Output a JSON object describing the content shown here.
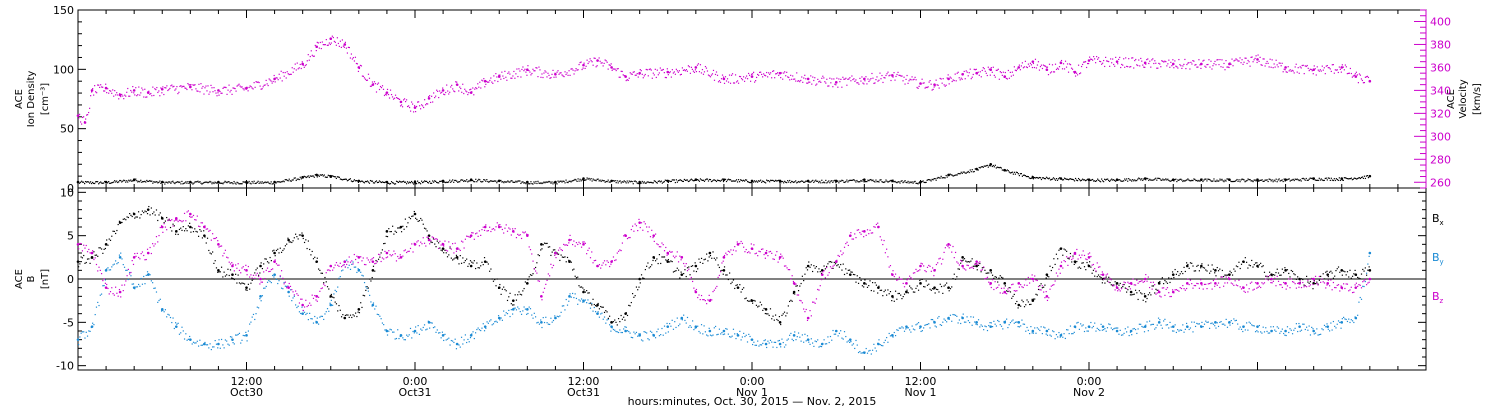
{
  "chart_data": [
    {
      "type": "scatter",
      "panel": "top",
      "left_axis": {
        "label_lines": [
          "ACE",
          "Ion Density",
          "[cm⁻³]"
        ],
        "ylim": [
          0,
          150
        ],
        "ticks": [
          "0",
          "50",
          "100",
          "150"
        ]
      },
      "right_axis": {
        "label_lines": [
          "ACE",
          "Velocity",
          "[km/s]"
        ],
        "ylim": [
          255,
          410
        ],
        "ticks": [
          "260",
          "280",
          "300",
          "320",
          "340",
          "360",
          "380",
          "400"
        ],
        "color": "#cc00cc"
      },
      "series": [
        {
          "axis": "left",
          "color": "#000000",
          "x": [
            0.0,
            2.0,
            4.0,
            6.0,
            8.0,
            10.0,
            12.0,
            14.0,
            16.0,
            17.0,
            18.0,
            20.0,
            22.0,
            24.0,
            26.0,
            28.0,
            30.0,
            32.0,
            34.0,
            36.0,
            38.0,
            40.0,
            42.0,
            44.0,
            46.0,
            48.0,
            50.0,
            52.0,
            54.0,
            56.0,
            58.0,
            60.0,
            62.0,
            64.0,
            65.0,
            66.0,
            68.0,
            70.0,
            72.0,
            74.0,
            76.0,
            78.0,
            80.0,
            82.0,
            84.0,
            86.0,
            88.0,
            90.0,
            92.0
          ],
          "values": [
            5,
            5,
            7,
            5,
            5,
            5,
            5,
            5,
            9,
            11,
            10,
            6,
            5,
            5,
            6,
            7,
            6,
            5,
            5,
            8,
            6,
            5,
            6,
            7,
            7,
            6,
            6,
            6,
            6,
            7,
            6,
            5,
            11,
            16,
            20,
            15,
            9,
            8,
            7,
            7,
            8,
            7,
            7,
            7,
            7,
            7,
            8,
            8,
            10
          ]
        },
        {
          "axis": "right",
          "color": "#cc00cc",
          "x": [
            0.0,
            0.5,
            1.0,
            2.0,
            3.0,
            4.0,
            5.0,
            6.0,
            8.0,
            10.0,
            12.0,
            14.0,
            16.0,
            17.0,
            18.0,
            19.0,
            20.0,
            21.0,
            22.0,
            23.0,
            24.0,
            25.0,
            26.0,
            27.0,
            28.0,
            29.0,
            30.0,
            32.0,
            34.0,
            36.0,
            37.0,
            38.0,
            39.0,
            40.0,
            42.0,
            44.0,
            46.0,
            48.0,
            50.0,
            52.0,
            54.0,
            56.0,
            58.0,
            60.0,
            61.0,
            62.0,
            63.0,
            64.0,
            65.0,
            66.0,
            67.0,
            68.0,
            69.0,
            70.0,
            71.0,
            72.0,
            74.0,
            76.0,
            78.0,
            80.0,
            82.0,
            84.0,
            86.0,
            88.0,
            90.0,
            91.0,
            92.0
          ],
          "values": [
            318,
            312,
            340,
            342,
            336,
            340,
            338,
            341,
            343,
            340,
            342,
            350,
            363,
            378,
            385,
            380,
            360,
            345,
            338,
            330,
            325,
            333,
            340,
            345,
            338,
            348,
            352,
            358,
            354,
            362,
            366,
            360,
            352,
            355,
            356,
            360,
            350,
            352,
            355,
            350,
            347,
            350,
            353,
            346,
            345,
            350,
            354,
            355,
            358,
            352,
            360,
            365,
            358,
            364,
            356,
            366,
            365,
            364,
            363,
            363,
            363,
            367,
            360,
            358,
            360,
            352,
            348
          ]
        }
      ]
    },
    {
      "type": "scatter",
      "panel": "bottom",
      "left_axis": {
        "label_lines": [
          "ACE",
          "B",
          "[nT]"
        ],
        "ylim": [
          -10.5,
          10.5
        ],
        "ticks": [
          "-10",
          "-5",
          "0",
          "5",
          "10"
        ]
      },
      "x_axis": {
        "title": "hours:minutes, Oct. 30, 2015 — Nov.  2, 2015",
        "xlim": [
          0,
          96
        ],
        "ticks": [
          {
            "h": 12,
            "line1": "12:00",
            "line2": "Oct30"
          },
          {
            "h": 24,
            "line1": "0:00",
            "line2": "Oct31"
          },
          {
            "h": 36,
            "line1": "12:00",
            "line2": "Oct31"
          },
          {
            "h": 48,
            "line1": "0:00",
            "line2": "Nov 1"
          },
          {
            "h": 60,
            "line1": "12:00",
            "line2": "Nov 1"
          },
          {
            "h": 72,
            "line1": "0:00",
            "line2": "Nov 2"
          }
        ]
      },
      "legend": [
        {
          "main": "B",
          "sub": "x",
          "color": "#000000"
        },
        {
          "main": "B",
          "sub": "y",
          "color": "#1a8ad4"
        },
        {
          "main": "B",
          "sub": "z",
          "color": "#cc00cc"
        }
      ],
      "series": [
        {
          "name": "Bx",
          "color": "#000000",
          "x": [
            0,
            1,
            2,
            3,
            4,
            5,
            6,
            7,
            8,
            9,
            10,
            11,
            12,
            13,
            14,
            15,
            16,
            17,
            18,
            19,
            20,
            21,
            22,
            23,
            24,
            25,
            26,
            27,
            28,
            29,
            30,
            31,
            32,
            33,
            34,
            35,
            36,
            37,
            38,
            39,
            40,
            41,
            42,
            43,
            44,
            45,
            46,
            47,
            48,
            49,
            50,
            51,
            52,
            53,
            54,
            55,
            56,
            57,
            58,
            59,
            60,
            61,
            62,
            63,
            64,
            65,
            66,
            67,
            68,
            69,
            70,
            71,
            72,
            73,
            74,
            75,
            76,
            77,
            78,
            79,
            80,
            81,
            82,
            83,
            84,
            85,
            86,
            87,
            88,
            89,
            90,
            91,
            92
          ],
          "values": [
            2.0,
            2.5,
            4.0,
            6.5,
            7.5,
            8.0,
            7.0,
            5.5,
            6.0,
            5.0,
            1.0,
            0.5,
            -1.0,
            1.5,
            3.0,
            4.5,
            5.0,
            2.0,
            -2.0,
            -4.5,
            -3.5,
            1.0,
            5.5,
            6.0,
            7.5,
            5.0,
            3.5,
            2.5,
            1.5,
            2.0,
            -1.0,
            -2.5,
            -0.5,
            4.0,
            3.0,
            2.0,
            -1.5,
            -3.0,
            -5.0,
            -4.0,
            0.0,
            2.5,
            2.0,
            0.5,
            1.5,
            3.0,
            1.0,
            -1.0,
            -2.5,
            -3.5,
            -5.0,
            -1.5,
            1.5,
            1.0,
            2.0,
            0.5,
            -0.5,
            -1.0,
            -2.0,
            -1.5,
            -0.5,
            -1.0,
            -1.0,
            2.5,
            1.5,
            1.0,
            -0.5,
            -3.0,
            -2.5,
            0.5,
            3.5,
            2.0,
            1.5,
            0.0,
            -0.5,
            -1.5,
            -2.0,
            -0.5,
            0.5,
            1.5,
            1.5,
            1.0,
            0.5,
            2.0,
            1.5,
            0.5,
            1.0,
            0.0,
            -0.5,
            0.5,
            1.0,
            0.5,
            1.0
          ]
        },
        {
          "name": "By",
          "color": "#1a8ad4",
          "x": [
            0,
            1,
            2,
            3,
            4,
            5,
            6,
            7,
            8,
            9,
            10,
            11,
            12,
            13,
            14,
            15,
            16,
            17,
            18,
            19,
            20,
            21,
            22,
            23,
            24,
            25,
            26,
            27,
            28,
            29,
            30,
            31,
            32,
            33,
            34,
            35,
            36,
            37,
            38,
            39,
            40,
            41,
            42,
            43,
            44,
            45,
            46,
            47,
            48,
            49,
            50,
            51,
            52,
            53,
            54,
            55,
            56,
            57,
            58,
            59,
            60,
            61,
            62,
            63,
            64,
            65,
            66,
            67,
            68,
            69,
            70,
            71,
            72,
            73,
            74,
            75,
            76,
            77,
            78,
            79,
            80,
            81,
            82,
            83,
            84,
            85,
            86,
            87,
            88,
            89,
            90,
            91,
            92
          ],
          "values": [
            -7.0,
            -5.5,
            1.0,
            2.5,
            -1.0,
            0.5,
            -3.5,
            -5.5,
            -7.0,
            -7.5,
            -7.5,
            -7.0,
            -6.5,
            -2.0,
            0.5,
            -1.5,
            -4.0,
            -5.0,
            -3.0,
            2.0,
            1.0,
            -3.0,
            -6.0,
            -6.5,
            -6.0,
            -5.0,
            -6.5,
            -7.5,
            -6.5,
            -5.5,
            -4.5,
            -3.5,
            -3.5,
            -5.0,
            -4.5,
            -2.0,
            -2.5,
            -4.0,
            -5.5,
            -6.0,
            -6.5,
            -6.5,
            -5.5,
            -4.5,
            -5.5,
            -6.0,
            -6.0,
            -6.5,
            -7.0,
            -7.5,
            -7.5,
            -6.5,
            -7.0,
            -7.5,
            -6.0,
            -7.0,
            -8.5,
            -7.5,
            -6.5,
            -5.5,
            -5.5,
            -5.0,
            -4.5,
            -4.5,
            -5.0,
            -5.5,
            -5.0,
            -5.0,
            -6.0,
            -6.0,
            -6.5,
            -5.5,
            -5.5,
            -5.5,
            -6.0,
            -6.0,
            -5.5,
            -5.0,
            -5.5,
            -5.5,
            -5.5,
            -5.0,
            -5.0,
            -5.5,
            -5.5,
            -6.0,
            -6.0,
            -5.5,
            -6.0,
            -5.5,
            -5.0,
            -4.5,
            3.0
          ]
        },
        {
          "name": "Bz",
          "color": "#cc00cc",
          "x": [
            0,
            1,
            2,
            3,
            4,
            5,
            6,
            7,
            8,
            9,
            10,
            11,
            12,
            13,
            14,
            15,
            16,
            17,
            18,
            19,
            20,
            21,
            22,
            23,
            24,
            25,
            26,
            27,
            28,
            29,
            30,
            31,
            32,
            33,
            34,
            35,
            36,
            37,
            38,
            39,
            40,
            41,
            42,
            43,
            44,
            45,
            46,
            47,
            48,
            49,
            50,
            51,
            52,
            53,
            54,
            55,
            56,
            57,
            58,
            59,
            60,
            61,
            62,
            63,
            64,
            65,
            66,
            67,
            68,
            69,
            70,
            71,
            72,
            73,
            74,
            75,
            76,
            77,
            78,
            79,
            80,
            81,
            82,
            83,
            84,
            85,
            86,
            87,
            88,
            89,
            90,
            91,
            92
          ],
          "values": [
            4.0,
            3.0,
            -1.0,
            -1.5,
            2.5,
            3.0,
            6.0,
            7.0,
            7.5,
            6.0,
            4.0,
            1.5,
            1.0,
            0.0,
            2.0,
            -1.0,
            -3.0,
            -2.0,
            1.5,
            2.0,
            2.5,
            2.0,
            3.0,
            2.5,
            4.0,
            4.5,
            4.0,
            3.5,
            5.0,
            6.0,
            6.0,
            5.5,
            5.0,
            -2.0,
            3.0,
            4.5,
            4.0,
            1.5,
            2.0,
            5.0,
            6.5,
            5.0,
            3.0,
            2.5,
            -1.5,
            -2.5,
            2.5,
            4.0,
            3.5,
            3.0,
            2.5,
            -0.5,
            -4.5,
            0.5,
            2.0,
            5.0,
            5.5,
            6.0,
            0.5,
            -0.5,
            1.5,
            1.0,
            4.0,
            1.5,
            2.0,
            -0.5,
            -1.5,
            -0.5,
            0.0,
            -2.0,
            1.5,
            3.0,
            2.5,
            0.5,
            -1.0,
            -0.5,
            0.0,
            -1.5,
            -1.5,
            -0.5,
            -0.5,
            -0.5,
            0.0,
            -1.0,
            -0.5,
            0.0,
            -0.5,
            -0.5,
            0.0,
            -0.5,
            -1.0,
            -1.0,
            0.0
          ]
        }
      ]
    }
  ]
}
